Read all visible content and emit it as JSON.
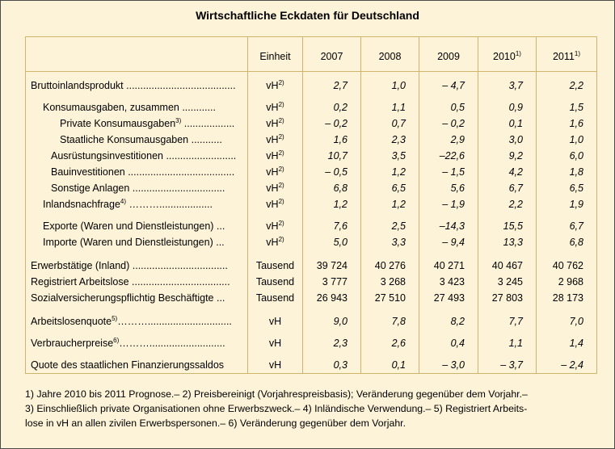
{
  "title": "Wirtschaftliche Eckdaten für Deutschland",
  "header": {
    "einheit": "Einheit",
    "years": [
      "2007",
      "2008",
      "2009",
      "2010",
      "2011"
    ],
    "year_notes": [
      "",
      "",
      "",
      "1)",
      "1)"
    ]
  },
  "rows": [
    {
      "label": "Bruttoinlandsprodukt .......................................",
      "note": "",
      "unit": "vH",
      "unit_note": "2)",
      "values": [
        "2,7",
        "1,0",
        "– 4,7",
        "3,7",
        "2,2"
      ]
    },
    {
      "label": "Konsumausgaben, zusammen  ............",
      "note": "",
      "unit": "vH",
      "unit_note": "2)",
      "values": [
        "0,2",
        "1,1",
        "0,5",
        "0,9",
        "1,5"
      ]
    },
    {
      "label": "Private Konsumausgaben",
      "note": "3)",
      "label_suffix": " ..................",
      "unit": "vH",
      "unit_note": "2)",
      "values": [
        "– 0,2",
        "0,7",
        "– 0,2",
        "0,1",
        "1,6"
      ]
    },
    {
      "label": "Staatliche Konsumausgaben  ...........",
      "note": "",
      "unit": "vH",
      "unit_note": "2)",
      "values": [
        "1,6",
        "2,3",
        "2,9",
        "3,0",
        "1,0"
      ]
    },
    {
      "label": "Ausrüstungsinvestitionen .........................",
      "note": "",
      "unit": "vH",
      "unit_note": "2)",
      "values": [
        "10,7",
        "3,5",
        "–22,6",
        "9,2",
        "6,0"
      ]
    },
    {
      "label": "Bauinvestitionen ......................................",
      "note": "",
      "unit": "vH",
      "unit_note": "2)",
      "values": [
        "– 0,5",
        "1,2",
        "– 1,5",
        "4,2",
        "1,8"
      ]
    },
    {
      "label": "Sonstige Anlagen  .................................",
      "note": "",
      "unit": "vH",
      "unit_note": "2)",
      "values": [
        "6,8",
        "6,5",
        "5,6",
        "6,7",
        "6,5"
      ]
    },
    {
      "label": "Inlandsnachfrage",
      "note": "4)",
      "label_suffix": " ………...................",
      "unit": "vH",
      "unit_note": "2)",
      "values": [
        "1,2",
        "1,2",
        "– 1,9",
        "2,2",
        "1,9"
      ]
    },
    {
      "label": "Exporte (Waren und Dienstleistungen) ...",
      "note": "",
      "unit": "vH",
      "unit_note": "2)",
      "values": [
        "7,6",
        "2,5",
        "–14,3",
        "15,5",
        "6,7"
      ]
    },
    {
      "label": "Importe (Waren und Dienstleistungen) ...",
      "note": "",
      "unit": "vH",
      "unit_note": "2)",
      "values": [
        "5,0",
        "3,3",
        "– 9,4",
        "13,3",
        "6,8"
      ]
    },
    {
      "label": "Erwerbstätige (Inland) ..................................",
      "note": "",
      "unit": "Tausend",
      "unit_note": "",
      "values": [
        "39 724",
        "40 276",
        "40 271",
        "40 467",
        "40 762"
      ]
    },
    {
      "label": "Registriert Arbeitslose ...................................",
      "note": "",
      "unit": "Tausend",
      "unit_note": "",
      "values": [
        "3 777",
        "3 268",
        "3 423",
        "3 245",
        "2 968"
      ]
    },
    {
      "label": "Sozialversicherungspflichtig Beschäftigte ...",
      "note": "",
      "unit": "Tausend",
      "unit_note": "",
      "values": [
        "26 943",
        "27 510",
        "27 493",
        "27 803",
        "28 173"
      ]
    },
    {
      "label": "Arbeitslosenquote",
      "note": "5)",
      "label_suffix": "………..............................",
      "unit": "vH",
      "unit_note": "",
      "values": [
        "9,0",
        "7,8",
        "8,2",
        "7,7",
        "7,0"
      ]
    },
    {
      "label": "Verbraucherpreise",
      "note": "6)",
      "label_suffix": "………...........................",
      "unit": "vH",
      "unit_note": "",
      "values": [
        "2,3",
        "2,6",
        "0,4",
        "1,1",
        "1,4"
      ]
    },
    {
      "label": "Quote des staatlichen Finanzierungssaldos",
      "note": "",
      "unit": "vH",
      "unit_note": "",
      "values": [
        "0,3",
        "0,1",
        "– 3,0",
        "– 3,7",
        "– 2,4"
      ]
    }
  ],
  "footnotes": [
    "1) Jahre 2010 bis 2011 Prognose.– 2) Preisbereinigt (Vorjahrespreisbasis); Veränderung gegenüber dem Vorjahr.–",
    "3) Einschließlich private Organisationen ohne Erwerbszweck.– 4) Inländische Verwendung.– 5) Registriert Arbeits-",
    "lose in vH an allen zivilen Erwerbspersonen.– 6) Veränderung gegenüber dem Vorjahr."
  ]
}
